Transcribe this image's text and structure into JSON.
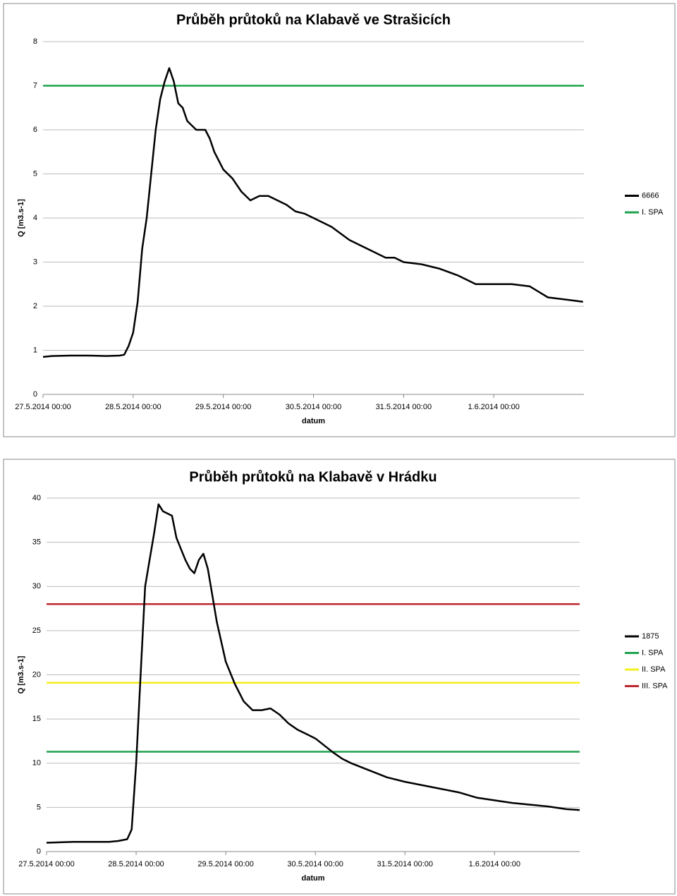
{
  "chart_data": [
    {
      "type": "line",
      "title": "Průběh průtoků na Klabavě ve Strašicích",
      "x_label": "datum",
      "y_label": "Q [m3.s-1]",
      "xlim": [
        0,
        6
      ],
      "ylim": [
        0,
        8
      ],
      "xticks": [
        {
          "value": 0,
          "label": "27.5.2014 00:00"
        },
        {
          "value": 1,
          "label": "28.5.2014 00:00"
        },
        {
          "value": 2,
          "label": "29.5.2014 00:00"
        },
        {
          "value": 3,
          "label": "30.5.2014 00:00"
        },
        {
          "value": 4,
          "label": "31.5.2014 00:00"
        },
        {
          "value": 5,
          "label": "1.6.2014 00:00"
        }
      ],
      "yticks": [
        0,
        1,
        2,
        3,
        4,
        5,
        6,
        7,
        8
      ],
      "grid": true,
      "legend": "right",
      "series": [
        {
          "name": "6666",
          "color": "#000000",
          "x": [
            0,
            0.1,
            0.3,
            0.5,
            0.7,
            0.85,
            0.9,
            0.95,
            1.0,
            1.05,
            1.1,
            1.15,
            1.2,
            1.25,
            1.3,
            1.35,
            1.4,
            1.45,
            1.5,
            1.55,
            1.6,
            1.7,
            1.8,
            1.85,
            1.9,
            2.0,
            2.1,
            2.2,
            2.3,
            2.4,
            2.5,
            2.6,
            2.7,
            2.8,
            2.9,
            3.0,
            3.1,
            3.2,
            3.3,
            3.4,
            3.5,
            3.6,
            3.7,
            3.8,
            3.9,
            4.0,
            4.2,
            4.4,
            4.6,
            4.7,
            4.8,
            5.0,
            5.2,
            5.4,
            5.6,
            5.8,
            5.99
          ],
          "values": [
            0.85,
            0.87,
            0.88,
            0.88,
            0.87,
            0.88,
            0.9,
            1.1,
            1.4,
            2.1,
            3.3,
            4.0,
            5.0,
            6.0,
            6.7,
            7.1,
            7.4,
            7.1,
            6.6,
            6.5,
            6.2,
            6.0,
            6.0,
            5.8,
            5.5,
            5.1,
            4.9,
            4.6,
            4.4,
            4.5,
            4.5,
            4.4,
            4.3,
            4.15,
            4.1,
            4.0,
            3.9,
            3.8,
            3.65,
            3.5,
            3.4,
            3.3,
            3.2,
            3.1,
            3.1,
            3.0,
            2.95,
            2.85,
            2.7,
            2.6,
            2.5,
            2.5,
            2.5,
            2.45,
            2.2,
            2.15,
            2.1
          ]
        },
        {
          "name": "I. SPA",
          "color": "#1fa24f",
          "x": [
            0,
            6
          ],
          "values": [
            7,
            7
          ]
        }
      ]
    },
    {
      "type": "line",
      "title": "Průběh průtoků na Klabavě v Hrádku",
      "x_label": "datum",
      "y_label": "Q [m3.s-1]",
      "xlim": [
        0,
        5.95
      ],
      "ylim": [
        0,
        40
      ],
      "xticks": [
        {
          "value": 0,
          "label": "27.5.2014 00:00"
        },
        {
          "value": 1,
          "label": "28.5.2014 00:00"
        },
        {
          "value": 2,
          "label": "29.5.2014 00:00"
        },
        {
          "value": 3,
          "label": "30.5.2014 00:00"
        },
        {
          "value": 4,
          "label": "31.5.2014 00:00"
        },
        {
          "value": 5,
          "label": "1.6.2014 00:00"
        }
      ],
      "yticks": [
        0,
        5,
        10,
        15,
        20,
        25,
        30,
        35,
        40
      ],
      "grid": true,
      "legend": "right",
      "series": [
        {
          "name": "1875",
          "color": "#000000",
          "x": [
            0,
            0.3,
            0.5,
            0.7,
            0.8,
            0.9,
            0.95,
            1.0,
            1.05,
            1.1,
            1.15,
            1.2,
            1.25,
            1.3,
            1.4,
            1.45,
            1.55,
            1.6,
            1.65,
            1.7,
            1.75,
            1.8,
            1.85,
            1.9,
            2.0,
            2.1,
            2.2,
            2.3,
            2.4,
            2.5,
            2.6,
            2.7,
            2.8,
            2.9,
            3.0,
            3.1,
            3.2,
            3.3,
            3.4,
            3.6,
            3.8,
            4.0,
            4.2,
            4.4,
            4.6,
            4.8,
            5.0,
            5.2,
            5.4,
            5.6,
            5.8,
            5.95
          ],
          "values": [
            1.0,
            1.1,
            1.1,
            1.1,
            1.2,
            1.4,
            2.5,
            10,
            20,
            30,
            33,
            36,
            39.3,
            38.5,
            38,
            35.5,
            33,
            32,
            31.5,
            33,
            33.7,
            32,
            29,
            26,
            21.5,
            19,
            17,
            16,
            16,
            16.2,
            15.5,
            14.5,
            13.8,
            13.3,
            12.8,
            12,
            11.2,
            10.5,
            10,
            9.2,
            8.4,
            7.9,
            7.5,
            7.1,
            6.7,
            6.1,
            5.8,
            5.5,
            5.3,
            5.1,
            4.8,
            4.7
          ]
        },
        {
          "name": "I. SPA",
          "color": "#1fa24f",
          "x": [
            0,
            5.95
          ],
          "values": [
            11.3,
            11.3
          ]
        },
        {
          "name": "II. SPA",
          "color": "#f3ef1d",
          "x": [
            0,
            5.95
          ],
          "values": [
            19.1,
            19.1
          ]
        },
        {
          "name": "III. SPA",
          "color": "#c0272d",
          "x": [
            0,
            5.95
          ],
          "values": [
            28,
            28
          ]
        }
      ]
    }
  ]
}
